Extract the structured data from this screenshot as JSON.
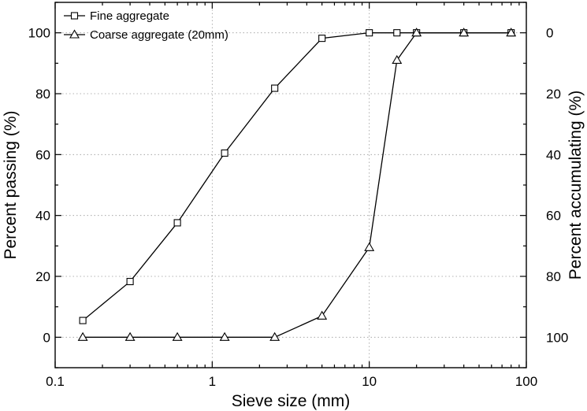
{
  "chart_data": {
    "type": "line",
    "xlabel": "Sieve size (mm)",
    "ylabel": "Percent passing (%)",
    "y2label": "Percent accumulating (%)",
    "xscale": "log",
    "xlim": [
      0.1,
      100
    ],
    "ylim": [
      -10,
      110
    ],
    "y2lim": [
      110,
      -10
    ],
    "grid": true,
    "legend_position": "top-left",
    "x_ticks": [
      {
        "value": 0.1,
        "label": "0.1"
      },
      {
        "value": 1,
        "label": "1"
      },
      {
        "value": 10,
        "label": "10"
      },
      {
        "value": 100,
        "label": "100"
      }
    ],
    "y_ticks": [
      {
        "value": 0,
        "label": "0"
      },
      {
        "value": 20,
        "label": "20"
      },
      {
        "value": 40,
        "label": "40"
      },
      {
        "value": 60,
        "label": "60"
      },
      {
        "value": 80,
        "label": "80"
      },
      {
        "value": 100,
        "label": "100"
      }
    ],
    "y2_ticks": [
      {
        "value": 0,
        "label": "0"
      },
      {
        "value": 20,
        "label": "20"
      },
      {
        "value": 40,
        "label": "40"
      },
      {
        "value": 60,
        "label": "60"
      },
      {
        "value": 80,
        "label": "80"
      },
      {
        "value": 100,
        "label": "100"
      }
    ],
    "series": [
      {
        "name": "Fine aggregate",
        "marker": "square",
        "x": [
          0.15,
          0.3,
          0.6,
          1.2,
          2.5,
          5,
          10,
          15,
          20,
          40,
          80
        ],
        "y": [
          5.5,
          18.3,
          37.6,
          60.5,
          81.8,
          98.2,
          100,
          100,
          100,
          100,
          100
        ]
      },
      {
        "name": "Coarse aggregate (20mm)",
        "marker": "triangle",
        "x": [
          0.15,
          0.3,
          0.6,
          1.2,
          2.5,
          5,
          10,
          15,
          20,
          40,
          80
        ],
        "y": [
          0,
          0,
          0,
          0,
          0,
          7,
          29.5,
          91,
          100,
          100,
          100
        ]
      }
    ]
  }
}
